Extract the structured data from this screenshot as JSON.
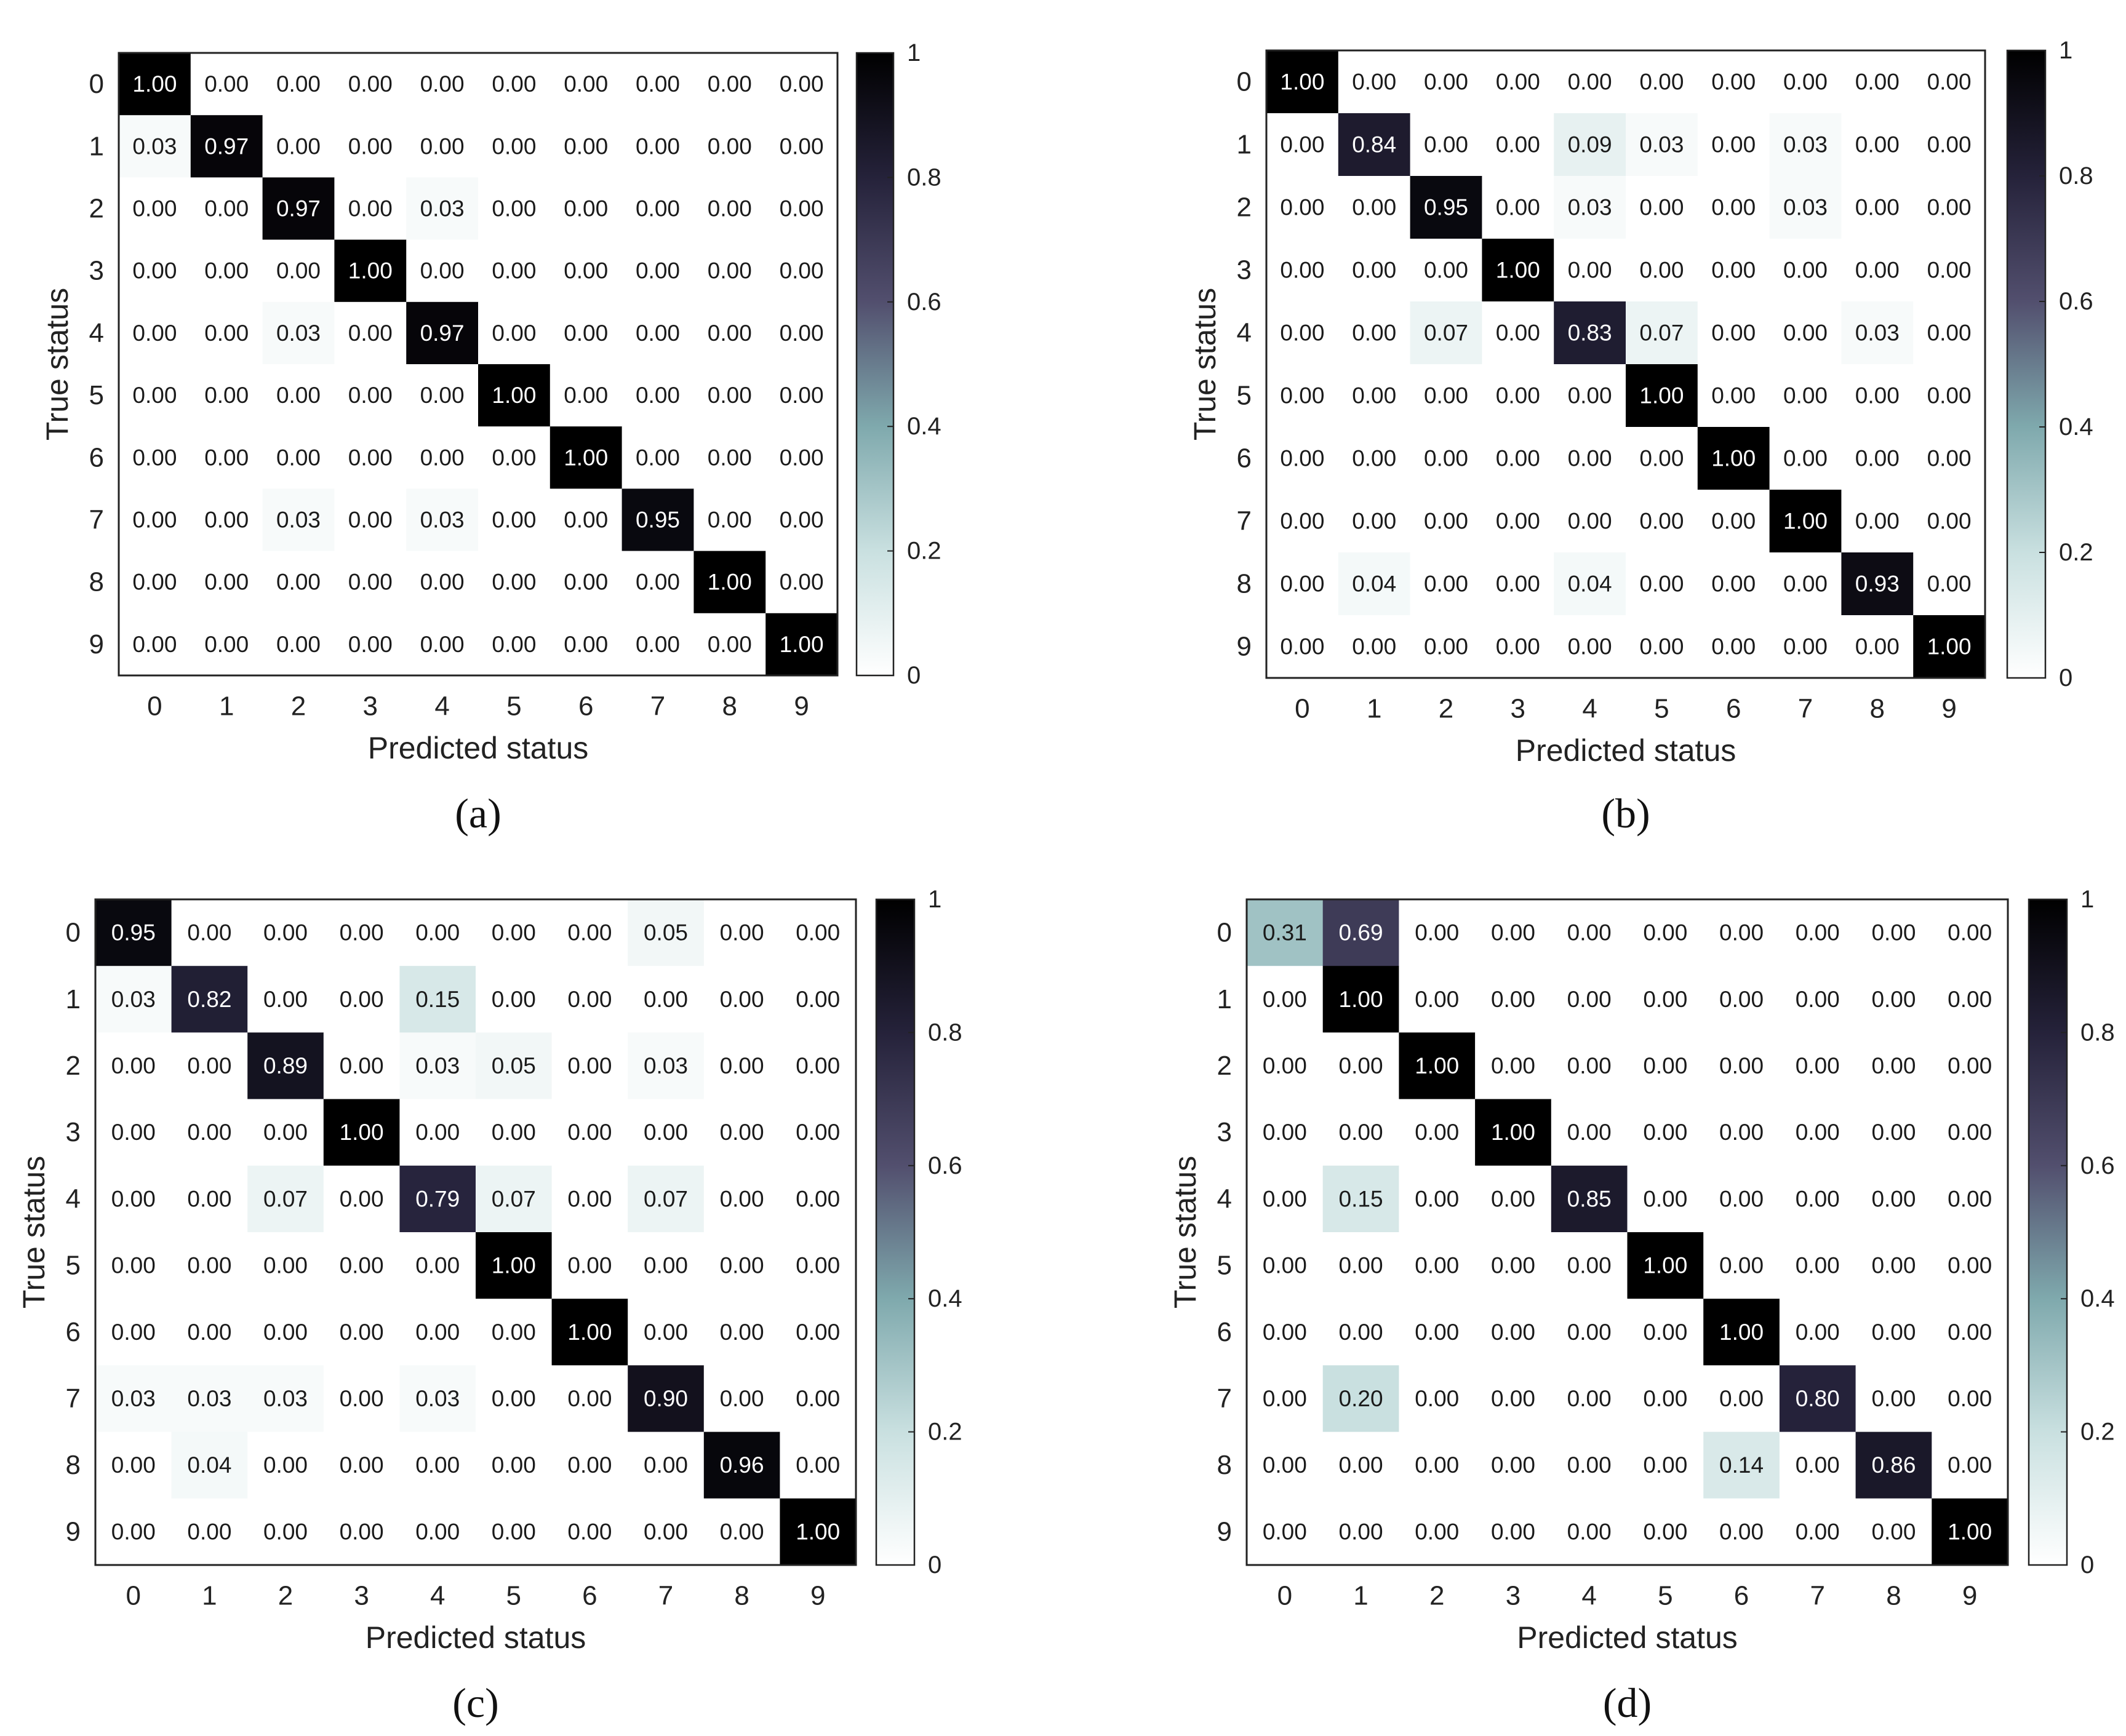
{
  "chart_data": [
    {
      "type": "heatmap",
      "panel_label": "(a)",
      "panel_letter": "a",
      "xlabel": "Predicted status",
      "ylabel": "True status",
      "x_categories": [
        "0",
        "1",
        "2",
        "3",
        "4",
        "5",
        "6",
        "7",
        "8",
        "9"
      ],
      "y_categories": [
        "0",
        "1",
        "2",
        "3",
        "4",
        "5",
        "6",
        "7",
        "8",
        "9"
      ],
      "values": [
        [
          1.0,
          0.0,
          0.0,
          0.0,
          0.0,
          0.0,
          0.0,
          0.0,
          0.0,
          0.0
        ],
        [
          0.03,
          0.97,
          0.0,
          0.0,
          0.0,
          0.0,
          0.0,
          0.0,
          0.0,
          0.0
        ],
        [
          0.0,
          0.0,
          0.97,
          0.0,
          0.03,
          0.0,
          0.0,
          0.0,
          0.0,
          0.0
        ],
        [
          0.0,
          0.0,
          0.0,
          1.0,
          0.0,
          0.0,
          0.0,
          0.0,
          0.0,
          0.0
        ],
        [
          0.0,
          0.0,
          0.03,
          0.0,
          0.97,
          0.0,
          0.0,
          0.0,
          0.0,
          0.0
        ],
        [
          0.0,
          0.0,
          0.0,
          0.0,
          0.0,
          1.0,
          0.0,
          0.0,
          0.0,
          0.0
        ],
        [
          0.0,
          0.0,
          0.0,
          0.0,
          0.0,
          0.0,
          1.0,
          0.0,
          0.0,
          0.0
        ],
        [
          0.0,
          0.0,
          0.03,
          0.0,
          0.03,
          0.0,
          0.0,
          0.95,
          0.0,
          0.0
        ],
        [
          0.0,
          0.0,
          0.0,
          0.0,
          0.0,
          0.0,
          0.0,
          0.0,
          1.0,
          0.0
        ],
        [
          0.0,
          0.0,
          0.0,
          0.0,
          0.0,
          0.0,
          0.0,
          0.0,
          0.0,
          1.0
        ]
      ],
      "colorbar": {
        "range": [
          0,
          1
        ],
        "ticks": [
          "0",
          "0.2",
          "0.4",
          "0.6",
          "0.8",
          "1"
        ]
      }
    },
    {
      "type": "heatmap",
      "panel_label": "(b)",
      "panel_letter": "b",
      "xlabel": "Predicted status",
      "ylabel": "True status",
      "x_categories": [
        "0",
        "1",
        "2",
        "3",
        "4",
        "5",
        "6",
        "7",
        "8",
        "9"
      ],
      "y_categories": [
        "0",
        "1",
        "2",
        "3",
        "4",
        "5",
        "6",
        "7",
        "8",
        "9"
      ],
      "values": [
        [
          1.0,
          0.0,
          0.0,
          0.0,
          0.0,
          0.0,
          0.0,
          0.0,
          0.0,
          0.0
        ],
        [
          0.0,
          0.84,
          0.0,
          0.0,
          0.09,
          0.03,
          0.0,
          0.03,
          0.0,
          0.0
        ],
        [
          0.0,
          0.0,
          0.95,
          0.0,
          0.03,
          0.0,
          0.0,
          0.03,
          0.0,
          0.0
        ],
        [
          0.0,
          0.0,
          0.0,
          1.0,
          0.0,
          0.0,
          0.0,
          0.0,
          0.0,
          0.0
        ],
        [
          0.0,
          0.0,
          0.07,
          0.0,
          0.83,
          0.07,
          0.0,
          0.0,
          0.03,
          0.0
        ],
        [
          0.0,
          0.0,
          0.0,
          0.0,
          0.0,
          1.0,
          0.0,
          0.0,
          0.0,
          0.0
        ],
        [
          0.0,
          0.0,
          0.0,
          0.0,
          0.0,
          0.0,
          1.0,
          0.0,
          0.0,
          0.0
        ],
        [
          0.0,
          0.0,
          0.0,
          0.0,
          0.0,
          0.0,
          0.0,
          1.0,
          0.0,
          0.0
        ],
        [
          0.0,
          0.04,
          0.0,
          0.0,
          0.04,
          0.0,
          0.0,
          0.0,
          0.93,
          0.0
        ],
        [
          0.0,
          0.0,
          0.0,
          0.0,
          0.0,
          0.0,
          0.0,
          0.0,
          0.0,
          1.0
        ]
      ],
      "colorbar": {
        "range": [
          0,
          1
        ],
        "ticks": [
          "0",
          "0.2",
          "0.4",
          "0.6",
          "0.8",
          "1"
        ]
      }
    },
    {
      "type": "heatmap",
      "panel_label": "(c)",
      "panel_letter": "c",
      "xlabel": "Predicted status",
      "ylabel": "True status",
      "x_categories": [
        "0",
        "1",
        "2",
        "3",
        "4",
        "5",
        "6",
        "7",
        "8",
        "9"
      ],
      "y_categories": [
        "0",
        "1",
        "2",
        "3",
        "4",
        "5",
        "6",
        "7",
        "8",
        "9"
      ],
      "values": [
        [
          0.95,
          0.0,
          0.0,
          0.0,
          0.0,
          0.0,
          0.0,
          0.05,
          0.0,
          0.0
        ],
        [
          0.03,
          0.82,
          0.0,
          0.0,
          0.15,
          0.0,
          0.0,
          0.0,
          0.0,
          0.0
        ],
        [
          0.0,
          0.0,
          0.89,
          0.0,
          0.03,
          0.05,
          0.0,
          0.03,
          0.0,
          0.0
        ],
        [
          0.0,
          0.0,
          0.0,
          1.0,
          0.0,
          0.0,
          0.0,
          0.0,
          0.0,
          0.0
        ],
        [
          0.0,
          0.0,
          0.07,
          0.0,
          0.79,
          0.07,
          0.0,
          0.07,
          0.0,
          0.0
        ],
        [
          0.0,
          0.0,
          0.0,
          0.0,
          0.0,
          1.0,
          0.0,
          0.0,
          0.0,
          0.0
        ],
        [
          0.0,
          0.0,
          0.0,
          0.0,
          0.0,
          0.0,
          1.0,
          0.0,
          0.0,
          0.0
        ],
        [
          0.03,
          0.03,
          0.03,
          0.0,
          0.03,
          0.0,
          0.0,
          0.9,
          0.0,
          0.0
        ],
        [
          0.0,
          0.04,
          0.0,
          0.0,
          0.0,
          0.0,
          0.0,
          0.0,
          0.96,
          0.0
        ],
        [
          0.0,
          0.0,
          0.0,
          0.0,
          0.0,
          0.0,
          0.0,
          0.0,
          0.0,
          1.0
        ]
      ],
      "colorbar": {
        "range": [
          0,
          1
        ],
        "ticks": [
          "0",
          "0.2",
          "0.4",
          "0.6",
          "0.8",
          "1"
        ]
      }
    },
    {
      "type": "heatmap",
      "panel_label": "(d)",
      "panel_letter": "d",
      "xlabel": "Predicted status",
      "ylabel": "True status",
      "x_categories": [
        "0",
        "1",
        "2",
        "3",
        "4",
        "5",
        "6",
        "7",
        "8",
        "9"
      ],
      "y_categories": [
        "0",
        "1",
        "2",
        "3",
        "4",
        "5",
        "6",
        "7",
        "8",
        "9"
      ],
      "values": [
        [
          0.31,
          0.69,
          0.0,
          0.0,
          0.0,
          0.0,
          0.0,
          0.0,
          0.0,
          0.0
        ],
        [
          0.0,
          1.0,
          0.0,
          0.0,
          0.0,
          0.0,
          0.0,
          0.0,
          0.0,
          0.0
        ],
        [
          0.0,
          0.0,
          1.0,
          0.0,
          0.0,
          0.0,
          0.0,
          0.0,
          0.0,
          0.0
        ],
        [
          0.0,
          0.0,
          0.0,
          1.0,
          0.0,
          0.0,
          0.0,
          0.0,
          0.0,
          0.0
        ],
        [
          0.0,
          0.15,
          0.0,
          0.0,
          0.85,
          0.0,
          0.0,
          0.0,
          0.0,
          0.0
        ],
        [
          0.0,
          0.0,
          0.0,
          0.0,
          0.0,
          1.0,
          0.0,
          0.0,
          0.0,
          0.0
        ],
        [
          0.0,
          0.0,
          0.0,
          0.0,
          0.0,
          0.0,
          1.0,
          0.0,
          0.0,
          0.0
        ],
        [
          0.0,
          0.2,
          0.0,
          0.0,
          0.0,
          0.0,
          0.0,
          0.8,
          0.0,
          0.0
        ],
        [
          0.0,
          0.0,
          0.0,
          0.0,
          0.0,
          0.0,
          0.14,
          0.0,
          0.86,
          0.0
        ],
        [
          0.0,
          0.0,
          0.0,
          0.0,
          0.0,
          0.0,
          0.0,
          0.0,
          0.0,
          1.0
        ]
      ],
      "colorbar": {
        "range": [
          0,
          1
        ],
        "ticks": [
          "0",
          "0.2",
          "0.4",
          "0.6",
          "0.8",
          "1"
        ]
      }
    }
  ],
  "colormap": [
    "#ffffff",
    "#c9e0e0",
    "#7fa9ad",
    "#524f6e",
    "#25223a",
    "#000000"
  ]
}
